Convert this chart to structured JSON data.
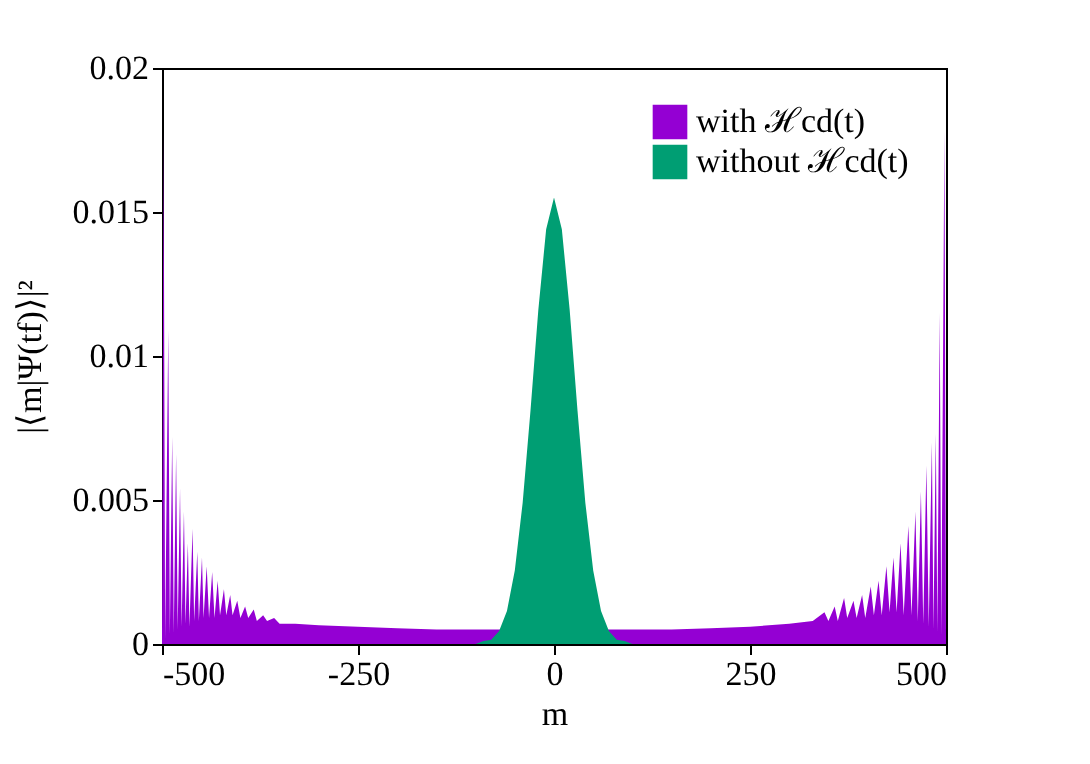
{
  "chart_data": {
    "type": "area",
    "xlabel": "m",
    "ylabel": "|⟨m|Ψ(tf)⟩|²",
    "xlim": [
      -500,
      500
    ],
    "xticks": [
      -500,
      -250,
      0,
      250,
      500
    ],
    "ylim": [
      0,
      0.02
    ],
    "yticks": [
      0,
      0.005,
      0.01,
      0.015,
      0.02
    ],
    "grid": false,
    "legend": "top right",
    "series": [
      {
        "name": "with ℋcd(t)",
        "color": "#9400d3",
        "x": [
          -500,
          -498,
          -496,
          -492,
          -490,
          -487,
          -485,
          -482,
          -480,
          -477,
          -475,
          -472,
          -470,
          -467,
          -465,
          -461,
          -459,
          -455,
          -453,
          -449,
          -447,
          -443,
          -440,
          -436,
          -433,
          -429,
          -426,
          -421,
          -418,
          -413,
          -410,
          -404,
          -400,
          -394,
          -390,
          -383,
          -379,
          -371,
          -366,
          -357,
          -350,
          -330,
          -300,
          -250,
          -200,
          -150,
          -100,
          100,
          150,
          200,
          250,
          300,
          330,
          345,
          350,
          358,
          362,
          370,
          374,
          382,
          386,
          393,
          397,
          404,
          408,
          414,
          418,
          424,
          428,
          433,
          437,
          442,
          446,
          452,
          456,
          461,
          464,
          468,
          471,
          475,
          478,
          482,
          484,
          487,
          489,
          492,
          494,
          498,
          500
        ],
        "values": [
          0.0002,
          0.0178,
          0.0002,
          0.0109,
          0.0003,
          0.0072,
          0.0004,
          0.0066,
          0.0005,
          0.0054,
          0.0006,
          0.0046,
          0.0007,
          0.0035,
          0.0006,
          0.004,
          0.0008,
          0.0032,
          0.0008,
          0.003,
          0.0009,
          0.0027,
          0.0009,
          0.0025,
          0.0009,
          0.0022,
          0.001,
          0.0019,
          0.001,
          0.0017,
          0.001,
          0.0015,
          0.0009,
          0.0013,
          0.0009,
          0.0012,
          0.0008,
          0.001,
          0.0008,
          0.0009,
          0.0007,
          0.0007,
          0.00065,
          0.0006,
          0.00055,
          0.0005,
          0.0005,
          0.0005,
          0.0005,
          0.00055,
          0.0006,
          0.0007,
          0.0008,
          0.0011,
          0.0008,
          0.0013,
          0.0008,
          0.0016,
          0.0009,
          0.0015,
          0.0009,
          0.0017,
          0.0009,
          0.002,
          0.001,
          0.0022,
          0.001,
          0.0027,
          0.0011,
          0.003,
          0.0011,
          0.0035,
          0.001,
          0.0041,
          0.001,
          0.0046,
          0.0008,
          0.0053,
          0.0007,
          0.0062,
          0.0006,
          0.007,
          0.0005,
          0.0073,
          0.0004,
          0.0115,
          0.0003,
          0.0178,
          0.0002
        ]
      },
      {
        "name": "without ℋcd(t)",
        "color": "#009e73",
        "x": [
          -100,
          -90,
          -80,
          -70,
          -60,
          -50,
          -40,
          -30,
          -20,
          -10,
          0,
          10,
          20,
          30,
          40,
          50,
          60,
          70,
          80,
          90,
          100
        ],
        "values": [
          0,
          0.0001,
          0.00015,
          0.00045,
          0.00115,
          0.00255,
          0.0049,
          0.0081,
          0.0116,
          0.0144,
          0.0155,
          0.0144,
          0.0116,
          0.0081,
          0.0049,
          0.00255,
          0.00115,
          0.00045,
          0.00015,
          0.0001,
          0
        ]
      }
    ]
  }
}
